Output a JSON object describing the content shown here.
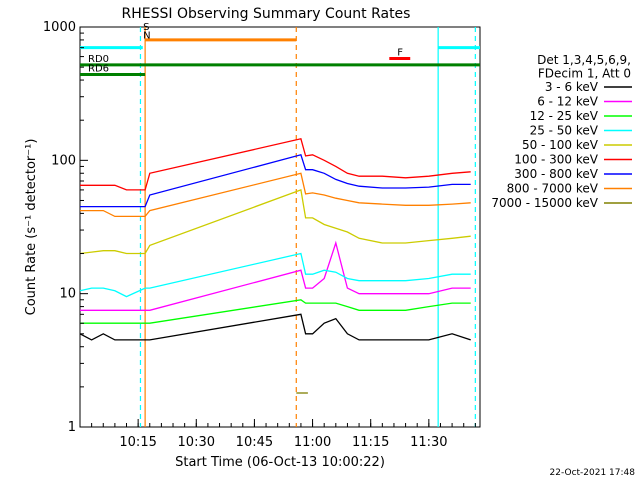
{
  "chart_data": {
    "type": "line",
    "title": "RHESSI Observing Summary Count Rates",
    "xlabel": "Start Time (06-Oct-13 10:00:22)",
    "ylabel": "Count Rate (s⁻¹ detector⁻¹)",
    "yscale": "log",
    "ylim": [
      1,
      1000
    ],
    "xlim": [
      10.0,
      11.72
    ],
    "x_tick_labels": [
      "10:15",
      "10:30",
      "10:45",
      "11:00",
      "11:15",
      "11:30"
    ],
    "x_tick_values": [
      10.25,
      10.5,
      10.75,
      11.0,
      11.25,
      11.5
    ],
    "y_tick_labels": [
      "1",
      "10",
      "100",
      "1000"
    ],
    "y_tick_values": [
      1,
      10,
      100,
      1000
    ],
    "grid": false,
    "timestamp": "22-Oct-2021 17:48",
    "legend_header": [
      "Det 1,3,4,5,6,9,",
      "FDecim 1, Att 0"
    ],
    "series": [
      {
        "name": "3 - 6 keV",
        "color": "#000000",
        "x": [
          10.0,
          10.05,
          10.1,
          10.15,
          10.2,
          10.28,
          10.3,
          10.95,
          10.97,
          11.0,
          11.05,
          11.1,
          11.15,
          11.2,
          11.3,
          11.4,
          11.5,
          11.6,
          11.68
        ],
        "y": [
          5,
          4.5,
          5,
          4.5,
          4.5,
          4.5,
          4.5,
          7,
          5,
          5,
          6,
          6.5,
          5,
          4.5,
          4.5,
          4.5,
          4.5,
          5,
          4.5
        ]
      },
      {
        "name": "6 - 12 keV",
        "color": "#ff00ff",
        "x": [
          10.0,
          10.05,
          10.1,
          10.15,
          10.2,
          10.28,
          10.3,
          10.95,
          10.97,
          11.0,
          11.05,
          11.1,
          11.15,
          11.2,
          11.3,
          11.4,
          11.5,
          11.6,
          11.68
        ],
        "y": [
          7.5,
          7.5,
          7.5,
          7.5,
          7.5,
          7.5,
          7.5,
          15,
          11,
          11,
          13,
          24,
          11,
          10,
          10,
          10,
          10,
          11,
          11
        ]
      },
      {
        "name": "12 - 25 keV",
        "color": "#00ff00",
        "x": [
          10.0,
          10.05,
          10.1,
          10.15,
          10.2,
          10.28,
          10.3,
          10.95,
          10.97,
          11.0,
          11.05,
          11.1,
          11.15,
          11.2,
          11.3,
          11.4,
          11.5,
          11.6,
          11.68
        ],
        "y": [
          6,
          6,
          6,
          6,
          6,
          6,
          6,
          9,
          8.5,
          8.5,
          8.5,
          8.5,
          8,
          7.5,
          7.5,
          7.5,
          8,
          8.5,
          8.5
        ]
      },
      {
        "name": "25 - 50 keV",
        "color": "#00ffff",
        "x": [
          10.0,
          10.05,
          10.1,
          10.15,
          10.2,
          10.28,
          10.3,
          10.95,
          10.97,
          11.0,
          11.05,
          11.1,
          11.15,
          11.2,
          11.3,
          11.4,
          11.5,
          11.6,
          11.68
        ],
        "y": [
          10.5,
          11,
          11,
          10.5,
          9.5,
          11,
          11,
          20,
          14,
          14,
          15,
          14.5,
          13,
          12.5,
          12.5,
          12.5,
          13,
          14,
          14
        ]
      },
      {
        "name": "50 - 100 keV",
        "color": "#cccc00",
        "x": [
          10.0,
          10.05,
          10.1,
          10.15,
          10.2,
          10.28,
          10.3,
          10.95,
          10.97,
          11.0,
          11.05,
          11.1,
          11.15,
          11.2,
          11.3,
          11.4,
          11.5,
          11.6,
          11.68
        ],
        "y": [
          20,
          20.5,
          21,
          21,
          20,
          20,
          23,
          60,
          37,
          37,
          33,
          31,
          29,
          26,
          24,
          24,
          25,
          26,
          27
        ]
      },
      {
        "name": "100 - 300 keV",
        "color": "#ff0000",
        "x": [
          10.0,
          10.05,
          10.1,
          10.15,
          10.2,
          10.28,
          10.3,
          10.95,
          10.97,
          11.0,
          11.05,
          11.1,
          11.15,
          11.2,
          11.3,
          11.4,
          11.5,
          11.6,
          11.68
        ],
        "y": [
          65,
          65,
          65,
          65,
          60,
          60,
          80,
          145,
          108,
          110,
          100,
          90,
          80,
          76,
          76,
          74,
          76,
          80,
          82
        ]
      },
      {
        "name": "300 - 800 keV",
        "color": "#0000ff",
        "x": [
          10.0,
          10.05,
          10.1,
          10.15,
          10.2,
          10.28,
          10.3,
          10.95,
          10.97,
          11.0,
          11.05,
          11.1,
          11.15,
          11.2,
          11.3,
          11.4,
          11.5,
          11.6,
          11.68
        ],
        "y": [
          45,
          45,
          45,
          45,
          45,
          45,
          55,
          110,
          85,
          85,
          80,
          72,
          67,
          64,
          62,
          62,
          63,
          66,
          66
        ]
      },
      {
        "name": "800 - 7000 keV",
        "color": "#ff8000",
        "x": [
          10.0,
          10.05,
          10.1,
          10.15,
          10.2,
          10.28,
          10.3,
          10.95,
          10.97,
          11.0,
          11.05,
          11.1,
          11.15,
          11.2,
          11.3,
          11.4,
          11.5,
          11.6,
          11.68
        ],
        "y": [
          42,
          42,
          42,
          38,
          38,
          38,
          42,
          80,
          56,
          57,
          55,
          52,
          50,
          48,
          47,
          46,
          46,
          47,
          48
        ]
      },
      {
        "name": "7000 - 15000 keV",
        "color": "#808000",
        "x": [
          10.93,
          10.935,
          10.94,
          10.945,
          10.95,
          10.955,
          10.96,
          10.965,
          10.97,
          10.975,
          10.98
        ],
        "y": [
          1.8,
          1.8,
          1.8,
          1.8,
          1.8,
          1.8,
          1.8,
          1.8,
          1.8,
          1.8,
          1.8
        ]
      }
    ],
    "annotations": {
      "status_bars": [
        {
          "label": "",
          "color": "#00ffff",
          "x0": 10.0,
          "x1": 10.27,
          "y": 700
        },
        {
          "label": "",
          "color": "#00ffff",
          "x0": 11.54,
          "x1": 11.72,
          "y": 700
        },
        {
          "label": "RD0",
          "color": "#008000",
          "x0": 10.0,
          "x1": 11.72,
          "y": 520
        },
        {
          "label": "RD6",
          "color": "#008000",
          "x0": 10.0,
          "x1": 10.28,
          "y": 440
        },
        {
          "label": "",
          "color": "#ff8000",
          "x0": 10.28,
          "x1": 10.93,
          "y": 800
        },
        {
          "label": "F",
          "color": "#ff0000",
          "x0": 11.33,
          "x1": 11.42,
          "y": 580
        },
        {
          "label": "S",
          "color": "#ff8000",
          "x0": 10.28,
          "x1": 10.28,
          "y": 900
        },
        {
          "label": "N",
          "color": "#00ffff",
          "x0": 10.28,
          "x1": 10.28,
          "y": 780
        }
      ],
      "vertical_lines": [
        {
          "x": 10.26,
          "color": "#00ffff",
          "style": "dashed"
        },
        {
          "x": 10.28,
          "color": "#ff8000",
          "style": "solid"
        },
        {
          "x": 10.93,
          "color": "#ff8000",
          "style": "dashed"
        },
        {
          "x": 11.54,
          "color": "#00ffff",
          "style": "solid"
        },
        {
          "x": 11.7,
          "color": "#00ffff",
          "style": "dashed"
        }
      ]
    }
  }
}
